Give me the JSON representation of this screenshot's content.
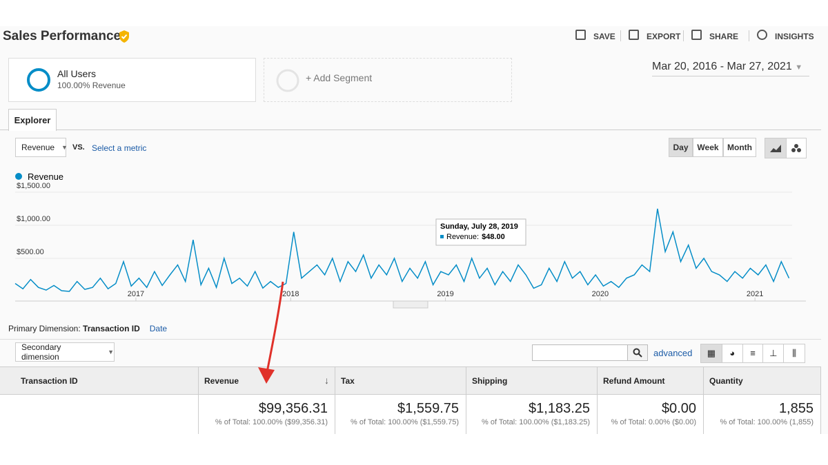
{
  "header": {
    "title": "Sales Performance",
    "actions": [
      "SAVE",
      "EXPORT",
      "SHARE",
      "INSIGHTS"
    ]
  },
  "segments": [
    {
      "name": "All Users",
      "detail": "100.00% Revenue"
    },
    {
      "name": "+ Add Segment"
    }
  ],
  "date_range": "Mar 20, 2016 - Mar 27, 2021",
  "tabs": [
    "Explorer"
  ],
  "metric_selector": {
    "metric": "Revenue",
    "vs": "VS.",
    "compare": "Select a metric"
  },
  "granularity": [
    "Day",
    "Week",
    "Month"
  ],
  "chart_data": {
    "type": "line",
    "series": [
      {
        "name": "Revenue",
        "color": "#058dc7",
        "values": [
          120,
          40,
          180,
          60,
          20,
          90,
          10,
          0,
          150,
          30,
          60,
          200,
          40,
          120,
          450,
          80,
          200,
          60,
          300,
          90,
          250,
          400,
          150,
          780,
          100,
          350,
          60,
          500,
          120,
          200,
          80,
          300,
          50,
          150,
          60,
          120,
          900,
          200,
          300,
          400,
          250,
          500,
          150,
          450,
          300,
          550,
          200,
          400,
          250,
          500,
          150,
          350,
          200,
          450,
          100,
          300,
          250,
          400,
          150,
          500,
          200,
          350,
          100,
          300,
          150,
          400,
          250,
          48,
          100,
          350,
          150,
          450,
          200,
          300,
          100,
          250,
          80,
          150,
          60,
          200,
          250,
          400,
          300,
          1250,
          600,
          900,
          450,
          700,
          350,
          500,
          300,
          250,
          150,
          300,
          200,
          350,
          250,
          400,
          150,
          450,
          200
        ]
      }
    ],
    "x": [
      2016.22,
      2016.27,
      2016.32,
      2016.37,
      2016.42,
      2016.47,
      2016.52,
      2016.57,
      2016.62,
      2016.67,
      2016.72,
      2016.77,
      2016.82,
      2016.87,
      2016.92,
      2016.97,
      2017.02,
      2017.07,
      2017.12,
      2017.17,
      2017.22,
      2017.27,
      2017.32,
      2017.37,
      2017.42,
      2017.47,
      2017.52,
      2017.57,
      2017.62,
      2017.67,
      2017.72,
      2017.77,
      2017.82,
      2017.87,
      2017.92,
      2017.97,
      2018.02,
      2018.07,
      2018.12,
      2018.17,
      2018.22,
      2018.27,
      2018.32,
      2018.37,
      2018.42,
      2018.47,
      2018.52,
      2018.57,
      2018.62,
      2018.67,
      2018.72,
      2018.77,
      2018.82,
      2018.87,
      2018.92,
      2018.97,
      2019.02,
      2019.07,
      2019.12,
      2019.17,
      2019.22,
      2019.27,
      2019.32,
      2019.37,
      2019.42,
      2019.47,
      2019.52,
      2019.57,
      2019.62,
      2019.67,
      2019.72,
      2019.77,
      2019.82,
      2019.87,
      2019.92,
      2019.97,
      2020.02,
      2020.07,
      2020.12,
      2020.17,
      2020.22,
      2020.27,
      2020.32,
      2020.37,
      2020.42,
      2020.47,
      2020.52,
      2020.57,
      2020.62,
      2020.67,
      2020.72,
      2020.77,
      2020.82,
      2020.87,
      2020.92,
      2020.97,
      2021.02,
      2021.07,
      2021.12,
      2021.17,
      2021.22
    ],
    "xlim": [
      2016.22,
      2021.24
    ],
    "xticks": [
      2017,
      2018,
      2019,
      2020,
      2021
    ],
    "ylim": [
      0,
      1500
    ],
    "yticks": [
      {
        "value": 500,
        "label": "$500.00"
      },
      {
        "value": 1000,
        "label": "$1,000.00"
      },
      {
        "value": 1500,
        "label": "$1,500.00"
      }
    ],
    "grid": true,
    "tooltip": {
      "date": "Sunday, July 28, 2019",
      "label": "Revenue:",
      "value": "$48.00"
    }
  },
  "primary_dimension": {
    "label": "Primary Dimension:",
    "active": "Transaction ID",
    "other": "Date"
  },
  "secondary_dimension": "Secondary dimension",
  "search": {
    "advanced": "advanced"
  },
  "table": {
    "columns": [
      "Transaction ID",
      "Revenue",
      "Tax",
      "Shipping",
      "Refund Amount",
      "Quantity"
    ],
    "totals": [
      {
        "value": "$99,356.31",
        "share": "% of Total: 100.00% ($99,356.31)"
      },
      {
        "value": "$1,559.75",
        "share": "% of Total: 100.00% ($1,559.75)"
      },
      {
        "value": "$1,183.25",
        "share": "% of Total: 100.00% ($1,183.25)"
      },
      {
        "value": "$0.00",
        "share": "% of Total: 0.00% ($0.00)"
      },
      {
        "value": "1,855",
        "share": "% of Total: 100.00% (1,855)"
      }
    ]
  }
}
